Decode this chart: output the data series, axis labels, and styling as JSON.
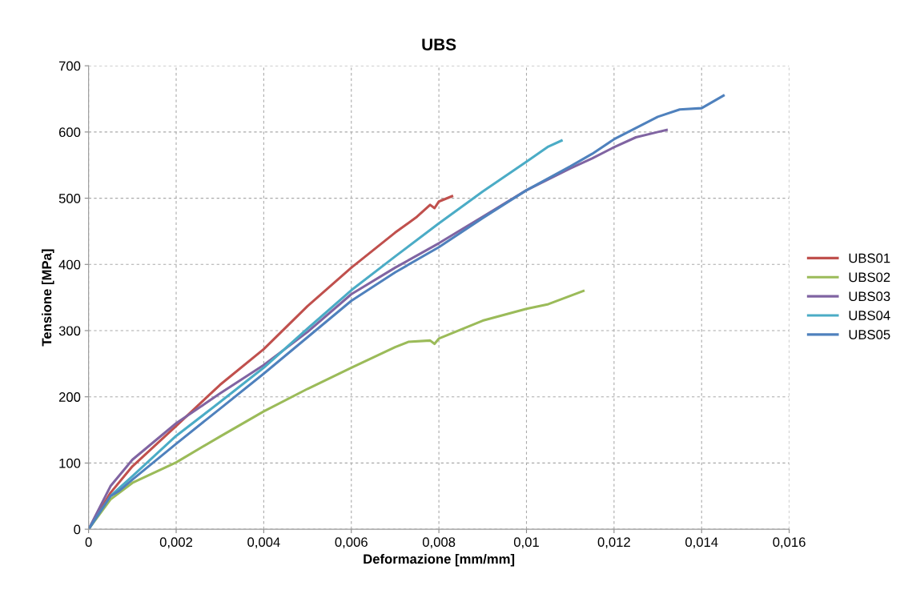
{
  "chart_data": {
    "type": "line",
    "title": "UBS",
    "xlabel": "Deformazione [mm/mm]",
    "ylabel": "Tensione [MPa]",
    "xlim": [
      0,
      0.016
    ],
    "ylim": [
      0,
      700
    ],
    "xticks": [
      0,
      {
        "value": 0.002,
        "label": "0,002"
      },
      {
        "value": 0.004,
        "label": "0,004"
      },
      {
        "value": 0.006,
        "label": "0,006"
      },
      {
        "value": 0.008,
        "label": "0,008"
      },
      {
        "value": 0.01,
        "label": "0,01"
      },
      {
        "value": 0.012,
        "label": "0,012"
      },
      {
        "value": 0.014,
        "label": "0,014"
      },
      {
        "value": 0.016,
        "label": "0,016"
      }
    ],
    "yticks": [
      0,
      100,
      200,
      300,
      400,
      500,
      600,
      700
    ],
    "grid": true,
    "legend": "right",
    "marker": "none",
    "line_style": "solid",
    "series": [
      {
        "name": "UBS01",
        "color": "#c0504d",
        "x": [
          0,
          0.0005,
          0.001,
          0.002,
          0.003,
          0.004,
          0.005,
          0.006,
          0.007,
          0.0075,
          0.0078,
          0.0079,
          0.008,
          0.0083
        ],
        "values": [
          0,
          55,
          95,
          156,
          218,
          272,
          337,
          395,
          448,
          472,
          490,
          485,
          495,
          503
        ]
      },
      {
        "name": "UBS02",
        "color": "#9bbb59",
        "x": [
          0,
          0.0005,
          0.001,
          0.002,
          0.003,
          0.004,
          0.005,
          0.006,
          0.007,
          0.0073,
          0.0078,
          0.0079,
          0.008,
          0.009,
          0.01,
          0.0105,
          0.0113
        ],
        "values": [
          0,
          45,
          70,
          101,
          140,
          178,
          212,
          244,
          275,
          283,
          285,
          280,
          288,
          315,
          333,
          340,
          360
        ]
      },
      {
        "name": "UBS03",
        "color": "#8064a2",
        "x": [
          0,
          0.0005,
          0.001,
          0.002,
          0.003,
          0.004,
          0.005,
          0.006,
          0.007,
          0.008,
          0.009,
          0.01,
          0.011,
          0.0115,
          0.012,
          0.0125,
          0.013,
          0.0132
        ],
        "values": [
          0,
          65,
          105,
          160,
          205,
          248,
          298,
          355,
          395,
          432,
          472,
          512,
          545,
          560,
          577,
          592,
          600,
          603
        ]
      },
      {
        "name": "UBS04",
        "color": "#4bacc6",
        "x": [
          0,
          0.0005,
          0.001,
          0.002,
          0.003,
          0.004,
          0.005,
          0.006,
          0.007,
          0.008,
          0.009,
          0.01,
          0.0105,
          0.0108
        ],
        "values": [
          0,
          50,
          80,
          141,
          192,
          244,
          303,
          361,
          412,
          462,
          510,
          555,
          578,
          587
        ]
      },
      {
        "name": "UBS05",
        "color": "#4f81bd",
        "x": [
          0,
          0.0005,
          0.0007,
          0.001,
          0.002,
          0.003,
          0.004,
          0.005,
          0.006,
          0.007,
          0.008,
          0.009,
          0.01,
          0.011,
          0.0115,
          0.012,
          0.013,
          0.0135,
          0.014,
          0.0145
        ],
        "values": [
          0,
          50,
          58,
          75,
          129,
          182,
          235,
          290,
          345,
          388,
          426,
          470,
          512,
          548,
          567,
          589,
          623,
          634,
          636,
          655
        ]
      }
    ]
  }
}
